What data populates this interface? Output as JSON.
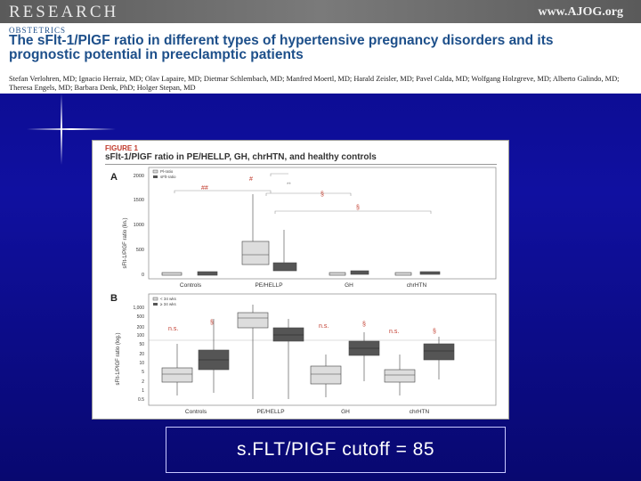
{
  "header": {
    "journal_section": "RESEARCH",
    "website": "www.AJOG.org",
    "category": "OBSTETRICS",
    "title": "The sFlt-1/PlGF ratio in different types of hypertensive pregnancy disorders and its prognostic potential in preeclamptic patients",
    "authors": "Stefan Verlohren, MD; Ignacio Herraiz, MD; Olav Lapaire, MD; Dietmar Schlembach, MD; Manfred Moertl, MD; Harald Zeisler, MD; Pavel Calda, MD; Wolfgang Holzgreve, MD; Alberto Galindo, MD; Theresa Engels, MD; Barbara Denk, PhD; Holger Stepan, MD"
  },
  "figure": {
    "label": "FIGURE 1",
    "caption": "sFlt-1/PlGF ratio in PE/HELLP, GH, chrHTN, and healthy controls",
    "panel_a": {
      "letter": "A",
      "ylabel": "sFlt-1/PlGF ratio (lin.)",
      "yticks": [
        "0",
        "500",
        "1000",
        "1500",
        "2000"
      ],
      "legend": [
        "Pl-ratio",
        "sFlt-ratio"
      ],
      "annotations": [
        "##",
        "#",
        "**",
        "§",
        "§"
      ]
    },
    "panel_b": {
      "letter": "B",
      "ylabel": "sFlt-1/PlGF ratio (log.)",
      "yticks": [
        "1,000",
        "500",
        "200",
        "100",
        "50",
        "20",
        "10",
        "5",
        "2",
        "1",
        "0.5"
      ],
      "legend": [
        "< 34 wks",
        "≥ 34 wks"
      ],
      "annotations": [
        "n.s.",
        "§",
        "n.s.",
        "§",
        "n.s.",
        "§"
      ]
    },
    "groups": [
      "Controls",
      "PE/HELLP",
      "GH",
      "chrHTN"
    ]
  },
  "caption_box": {
    "text": "s.FLT/PIGF cutoff = 85"
  },
  "colors": {
    "background": "#1010a0",
    "title_blue": "#1d4f8a",
    "light_box": "#dddddd",
    "dark_box": "#555555",
    "annotation_red": "#c0392b"
  }
}
